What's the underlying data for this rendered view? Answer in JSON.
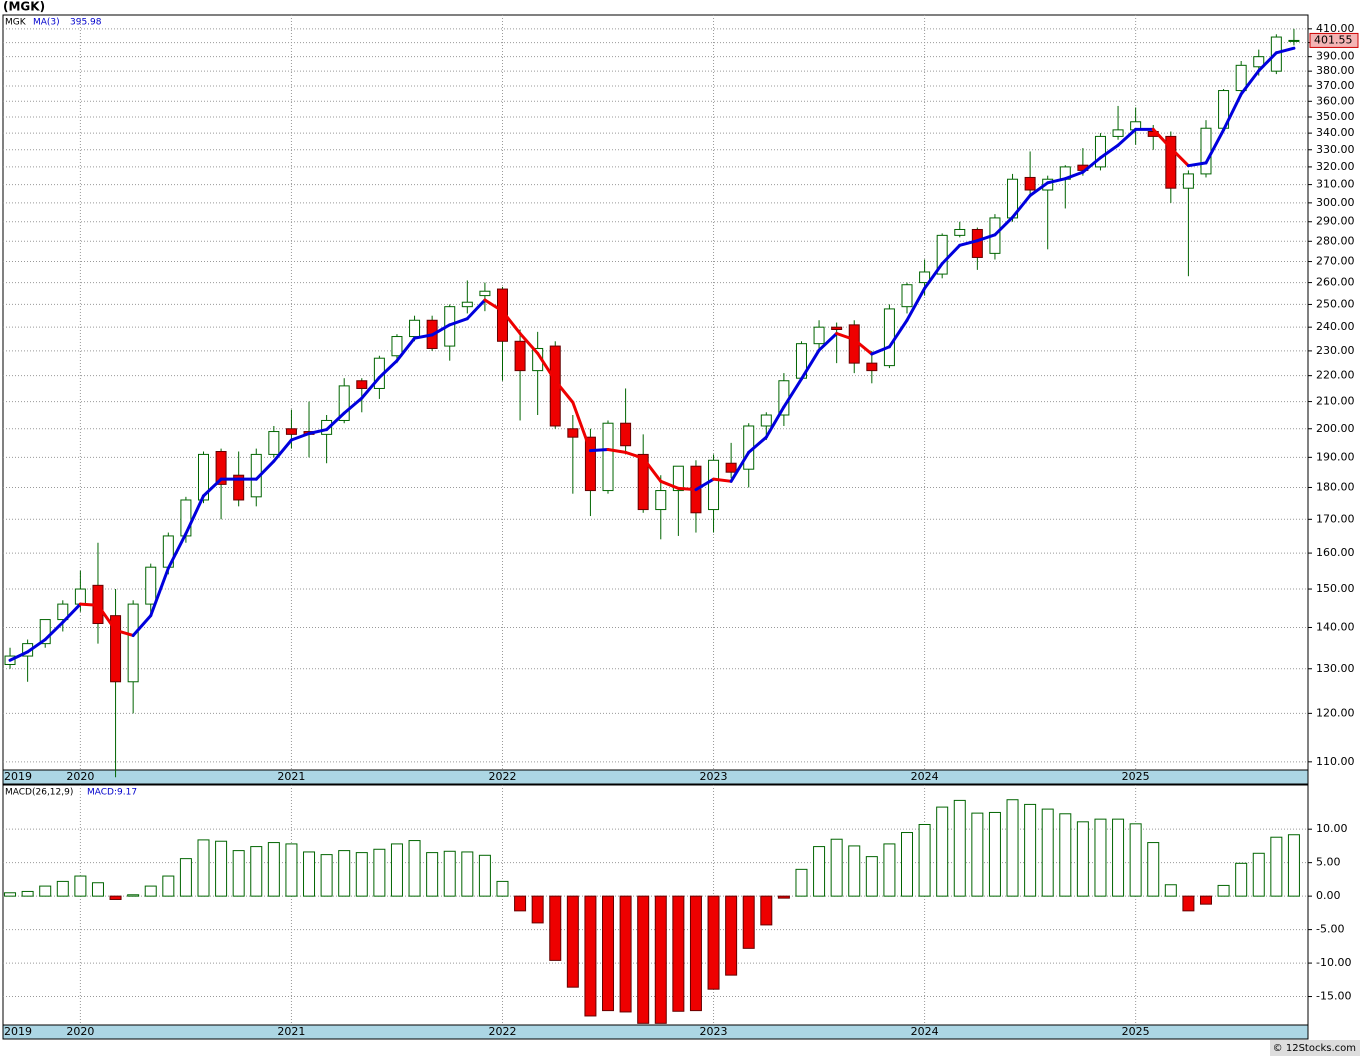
{
  "chart_data": [
    {
      "type": "candlestick",
      "title": "(MGK)",
      "name": "MGK",
      "log_scale": true,
      "grid": true,
      "up_color": "#ffffff",
      "down_color": "#ee0000",
      "edge_color": "#006400",
      "last_color": "#f4b4b4",
      "open": [
        131,
        133,
        136,
        142,
        146,
        151,
        143,
        127,
        146,
        156,
        165,
        176,
        192,
        184,
        177,
        191,
        200,
        199,
        198,
        203,
        218,
        215,
        228,
        236,
        243,
        232,
        249,
        254,
        257,
        234,
        222,
        232,
        200,
        197,
        179,
        202,
        191,
        173,
        179,
        187,
        173,
        188,
        186,
        201,
        205,
        219,
        233,
        240,
        241,
        225,
        224,
        249,
        260,
        264,
        283,
        286,
        274,
        292,
        314,
        307,
        313,
        321,
        320,
        338,
        342,
        341,
        338,
        308,
        316,
        343,
        367,
        383,
        380,
        401
      ],
      "high": [
        135,
        137,
        142,
        147,
        155,
        163,
        150,
        147,
        157,
        166,
        177,
        192,
        193,
        192,
        193,
        201,
        207,
        210,
        205,
        219,
        219,
        228,
        237,
        245,
        245,
        250,
        261,
        260,
        258,
        239,
        238,
        234,
        205,
        200,
        203,
        215,
        198,
        184,
        187,
        189,
        191,
        195,
        202,
        206,
        221,
        234,
        243,
        242,
        243,
        230,
        250,
        260,
        271,
        284,
        290,
        287,
        294,
        316,
        329,
        315,
        321,
        331,
        340,
        357,
        356,
        345,
        341,
        318,
        348,
        368,
        387,
        395,
        406,
        410
      ],
      "low": [
        130,
        127,
        135,
        139,
        144,
        136,
        107,
        120,
        143,
        154,
        163,
        175,
        170,
        174,
        174,
        190,
        193,
        190,
        188,
        202,
        206,
        211,
        225,
        234,
        230,
        226,
        246,
        247,
        218,
        203,
        205,
        200,
        178,
        171,
        178,
        191,
        172,
        164,
        165,
        166,
        166,
        183,
        180,
        196,
        201,
        218,
        231,
        225,
        221,
        217,
        223,
        246,
        254,
        262,
        282,
        266,
        271,
        290,
        303,
        276,
        297,
        315,
        318,
        336,
        333,
        330,
        300,
        263,
        314,
        341,
        363,
        377,
        378,
        398
      ],
      "close": [
        133,
        136,
        142,
        146,
        150,
        141,
        127,
        146,
        156,
        165,
        176,
        191,
        181,
        176,
        191,
        199,
        198,
        198,
        203,
        216,
        215,
        227,
        236,
        243,
        231,
        249,
        251,
        256,
        234,
        222,
        231,
        201,
        197,
        179,
        202,
        194,
        173,
        179,
        187,
        172,
        189,
        185,
        201,
        205,
        218,
        233,
        240,
        239,
        225,
        222,
        248,
        259,
        265,
        283,
        286,
        272,
        292,
        313,
        307,
        313,
        320,
        318,
        338,
        342,
        347,
        338,
        308,
        316,
        343,
        367,
        384,
        390,
        404,
        401.55
      ],
      "ma": {
        "name": "MA(3)",
        "up_color": "#0000dd",
        "down_color": "#ee0000",
        "values": [
          132,
          134,
          137,
          141.3,
          146,
          145.7,
          139.3,
          138,
          143,
          155.7,
          165.7,
          177.3,
          182.7,
          182.7,
          182.7,
          188.7,
          196,
          198.3,
          199.7,
          205.7,
          211.3,
          219.3,
          226,
          235.3,
          236.7,
          241,
          243.7,
          252,
          247,
          237.3,
          229,
          218,
          209.7,
          192.3,
          192.7,
          191.7,
          189.7,
          182,
          179.7,
          179.3,
          182.7,
          182,
          191.7,
          197,
          208,
          218.7,
          230.3,
          237.3,
          234.7,
          228.7,
          231.7,
          243,
          257.3,
          269,
          278,
          280.3,
          283.3,
          292.3,
          304,
          311,
          313.3,
          317,
          325.3,
          332.7,
          342.3,
          342.3,
          331,
          320.7,
          322.3,
          342,
          364.7,
          380.3,
          392.7,
          395.98
        ]
      },
      "ylim": [
        108.4,
        420.3
      ],
      "yticks": [
        {
          "value": 110,
          "label": "110.00"
        },
        {
          "value": 120,
          "label": "120.00"
        },
        {
          "value": 130,
          "label": "130.00"
        },
        {
          "value": 140,
          "label": "140.00"
        },
        {
          "value": 150,
          "label": "150.00"
        },
        {
          "value": 160,
          "label": "160.00"
        },
        {
          "value": 170,
          "label": "170.00"
        },
        {
          "value": 180,
          "label": "180.00"
        },
        {
          "value": 190,
          "label": "190.00"
        },
        {
          "value": 200,
          "label": "200.00"
        },
        {
          "value": 210,
          "label": "210.00"
        },
        {
          "value": 220,
          "label": "220.00"
        },
        {
          "value": 230,
          "label": "230.00"
        },
        {
          "value": 240,
          "label": "240.00"
        },
        {
          "value": 250,
          "label": "250.00"
        },
        {
          "value": 260,
          "label": "260.00"
        },
        {
          "value": 270,
          "label": "270.00"
        },
        {
          "value": 280,
          "label": "280.00"
        },
        {
          "value": 290,
          "label": "290.00"
        },
        {
          "value": 300,
          "label": "300.00"
        },
        {
          "value": 310,
          "label": "310.00"
        },
        {
          "value": 320,
          "label": "320.00"
        },
        {
          "value": 330,
          "label": "330.00"
        },
        {
          "value": 340,
          "label": "340.00"
        },
        {
          "value": 350,
          "label": "350.00"
        },
        {
          "value": 360,
          "label": "360.00"
        },
        {
          "value": 370,
          "label": "370.00"
        },
        {
          "value": 380,
          "label": "380.00"
        },
        {
          "value": 390,
          "label": "390.00"
        },
        {
          "value": 400,
          "label": "400.00"
        },
        {
          "value": 410,
          "label": "410.00"
        }
      ],
      "xlim": [
        -0.4,
        73.8
      ],
      "xticks": [
        {
          "value": -0.4,
          "label": "2019"
        },
        {
          "value": 4,
          "label": "2020"
        },
        {
          "value": 16,
          "label": "2021"
        },
        {
          "value": 28,
          "label": "2022"
        },
        {
          "value": 40,
          "label": "2023"
        },
        {
          "value": 52,
          "label": "2024"
        },
        {
          "value": 64,
          "label": "2025"
        }
      ]
    },
    {
      "type": "bar",
      "name": "MACD(26,12,9)",
      "last_label": "MACD:9.17",
      "grid": true,
      "pos_color": "#ffffff",
      "neg_color": "#ee0000",
      "edge_color": "#006400",
      "values": [
        0.5,
        0.7,
        1.5,
        2.2,
        3.0,
        2.0,
        -0.5,
        0.2,
        1.5,
        3.0,
        5.6,
        8.4,
        8.2,
        6.8,
        7.4,
        8.0,
        7.8,
        6.6,
        6.2,
        6.8,
        6.5,
        7.0,
        7.8,
        8.3,
        6.5,
        6.7,
        6.6,
        6.1,
        2.2,
        -2.2,
        -4.0,
        -9.6,
        -13.6,
        -17.9,
        -17.1,
        -17.3,
        -19.0,
        -19.0,
        -17.2,
        -17.1,
        -13.9,
        -11.8,
        -7.8,
        -4.3,
        -0.3,
        4.0,
        7.4,
        8.5,
        7.5,
        5.9,
        7.8,
        9.5,
        10.7,
        13.3,
        14.3,
        12.4,
        12.5,
        14.4,
        13.7,
        13.0,
        12.3,
        11.1,
        11.5,
        11.5,
        10.8,
        8.0,
        1.7,
        -2.2,
        -1.2,
        1.6,
        4.9,
        6.4,
        8.8,
        9.17
      ],
      "ylim": [
        -19.25,
        16.6
      ],
      "yticks": [
        {
          "value": 10,
          "label": "10.00"
        },
        {
          "value": 5,
          "label": "5.00"
        },
        {
          "value": 0,
          "label": "0.00"
        },
        {
          "value": -5,
          "label": "-5.00"
        },
        {
          "value": -10,
          "label": "-10.00"
        },
        {
          "value": -15,
          "label": "-15.00"
        }
      ],
      "xlim": [
        -0.4,
        73.8
      ],
      "xticks": [
        {
          "value": -0.4,
          "label": "2019"
        },
        {
          "value": 4,
          "label": "2020"
        },
        {
          "value": 16,
          "label": "2021"
        },
        {
          "value": 28,
          "label": "2022"
        },
        {
          "value": 40,
          "label": "2023"
        },
        {
          "value": 52,
          "label": "2024"
        },
        {
          "value": 64,
          "label": "2025"
        }
      ],
      "source": "© 12Stocks.com"
    }
  ]
}
